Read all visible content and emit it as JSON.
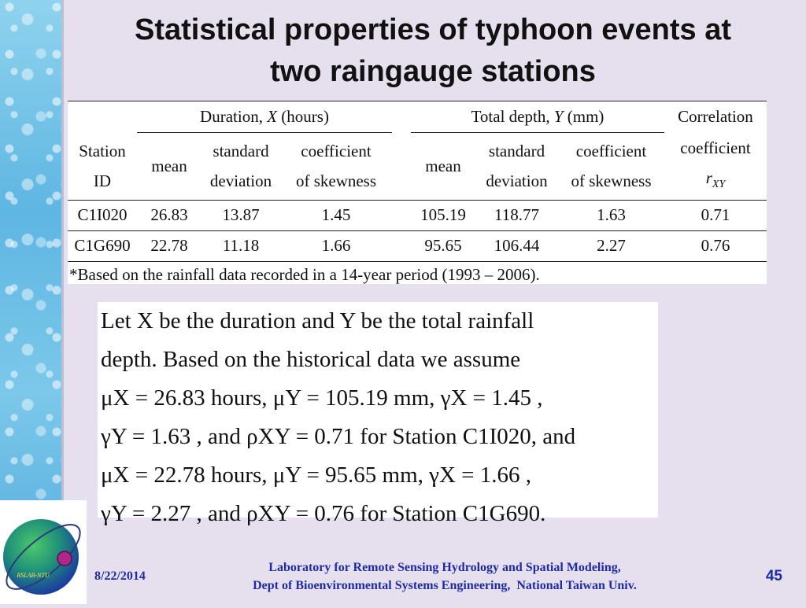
{
  "slide": {
    "title_line1": "Statistical properties of typhoon events at",
    "title_line2": "two raingauge stations"
  },
  "table": {
    "group_duration": "Duration, X (hours)",
    "group_depth": "Total depth, Y (mm)",
    "corr_line1": "Correlation",
    "corr_line2": "coefficient",
    "corr_symbol": "r",
    "corr_sub": "XY",
    "station_line1": "Station",
    "station_line2": "ID",
    "mean": "mean",
    "std_line1": "standard",
    "std_line2": "deviation",
    "skew_line1": "coefficient",
    "skew_line2": "of skewness",
    "rows": [
      {
        "id": "C1I020",
        "dur_mean": "26.83",
        "dur_sd": "13.87",
        "dur_skew": "1.45",
        "dep_mean": "105.19",
        "dep_sd": "118.77",
        "dep_skew": "1.63",
        "corr": "0.71"
      },
      {
        "id": "C1G690",
        "dur_mean": "22.78",
        "dur_sd": "11.18",
        "dur_skew": "1.66",
        "dep_mean": "95.65",
        "dep_sd": "106.44",
        "dep_skew": "2.27",
        "corr": "0.76"
      }
    ],
    "footnote": "*Based on the rainfall data recorded in a 14-year period (1993 – 2006)."
  },
  "assumption": {
    "lines": [
      "Let X be the duration and Y be the total rainfall",
      "depth. Based on the historical data we assume",
      "μX = 26.83 hours, μY = 105.19 mm, γX = 1.45 ,",
      "γY = 1.63 , and ρXY = 0.71   for Station C1I020, and",
      "μX = 22.78 hours, μY = 95.65 mm, γX = 1.66 ,",
      "γY = 2.27 , and ρXY = 0.76 for Station C1G690."
    ]
  },
  "logo": {
    "text": "RSLAB-NTU"
  },
  "footer": {
    "date": "8/22/2014",
    "line1": "Laboratory for Remote Sensing Hydrology and Spatial Modeling,",
    "line2": "Dept of Bioenvironmental Systems Engineering,  National Taiwan Univ.",
    "page": "45"
  },
  "colors": {
    "background": "#e6e0ee",
    "footer_text": "#1f2aa6",
    "strip": "#5eb6e2"
  }
}
